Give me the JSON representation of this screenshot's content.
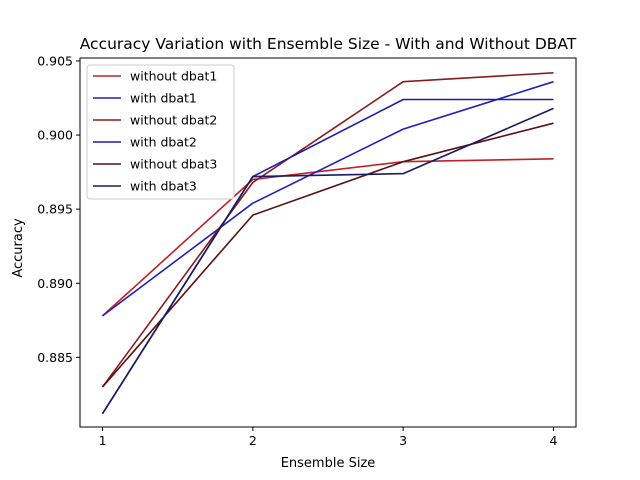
{
  "chart_data": {
    "type": "line",
    "title": "Accuracy Variation with Ensemble Size - With and Without DBAT",
    "xlabel": "Ensemble Size",
    "ylabel": "Accuracy",
    "x": [
      1,
      2,
      3,
      4
    ],
    "xticks": [
      "1",
      "2",
      "3",
      "4"
    ],
    "yticks": [
      "0.885",
      "0.890",
      "0.895",
      "0.900",
      "0.905"
    ],
    "ytick_values": [
      0.885,
      0.89,
      0.895,
      0.9,
      0.905
    ],
    "xlim": [
      0.85,
      4.15
    ],
    "ylim": [
      0.8803,
      0.9052
    ],
    "grid": false,
    "legend_position": "upper-left",
    "series": [
      {
        "name": "without dbat1",
        "color": "#c0202a",
        "values": [
          0.8878,
          0.897,
          0.8982,
          0.8984
        ]
      },
      {
        "name": "with dbat1",
        "color": "#2020c0",
        "values": [
          0.8878,
          0.8954,
          0.9004,
          0.9036
        ]
      },
      {
        "name": "without dbat2",
        "color": "#8b1a1a",
        "values": [
          0.883,
          0.8968,
          0.9036,
          0.9042
        ]
      },
      {
        "name": "with dbat2",
        "color": "#1c1caa",
        "values": [
          0.8812,
          0.8972,
          0.9024,
          0.9024
        ]
      },
      {
        "name": "without dbat3",
        "color": "#5a1010",
        "values": [
          0.883,
          0.8946,
          0.8982,
          0.9008
        ]
      },
      {
        "name": "with dbat3",
        "color": "#1a1a60",
        "values": [
          0.8812,
          0.8972,
          0.8974,
          0.9018
        ]
      }
    ]
  }
}
